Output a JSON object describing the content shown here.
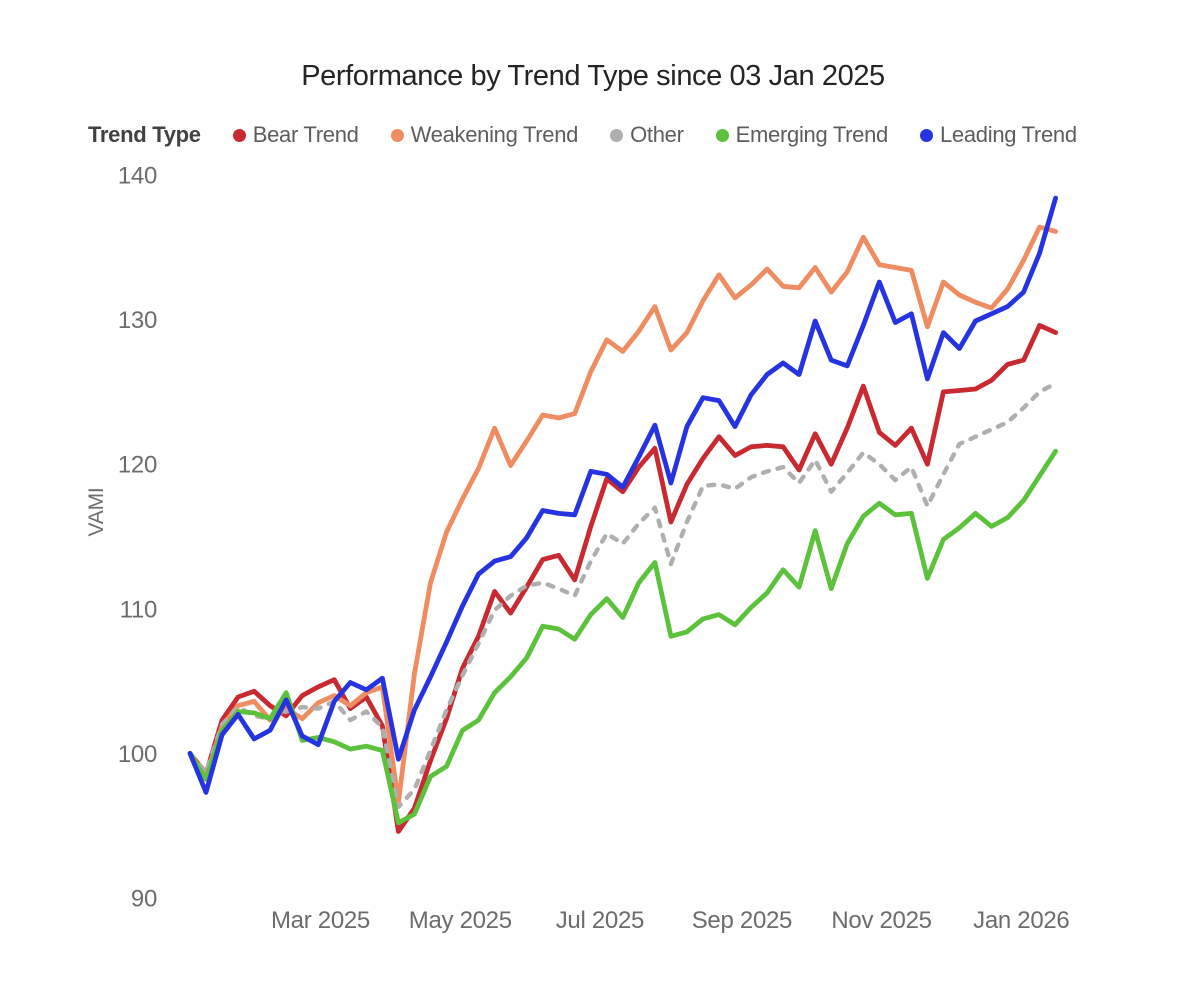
{
  "title": "Performance by Trend Type since 03 Jan 2025",
  "legend": {
    "title": "Trend Type"
  },
  "y_axis": {
    "title": "VAMI",
    "ticks": [
      140,
      130,
      120,
      110,
      100,
      90
    ]
  },
  "x_axis": {
    "ticks": [
      {
        "label": "Mar 2025",
        "week": 8.14
      },
      {
        "label": "May 2025",
        "week": 16.86
      },
      {
        "label": "Jul 2025",
        "week": 25.57
      },
      {
        "label": "Sep 2025",
        "week": 34.43
      },
      {
        "label": "Nov 2025",
        "week": 43.14
      },
      {
        "label": "Jan 2026",
        "week": 51.86
      }
    ]
  },
  "chart_data": {
    "type": "line",
    "title": "Performance by Trend Type since 03 Jan 2025",
    "xlabel": "",
    "ylabel": "VAMI",
    "ylim": [
      90,
      140
    ],
    "x_unit": "weekly",
    "legend_position": "top",
    "grid": false,
    "x": [
      "2025-01-03",
      "2025-01-10",
      "2025-01-17",
      "2025-01-24",
      "2025-01-31",
      "2025-02-07",
      "2025-02-14",
      "2025-02-21",
      "2025-02-28",
      "2025-03-07",
      "2025-03-14",
      "2025-03-21",
      "2025-03-28",
      "2025-04-04",
      "2025-04-11",
      "2025-04-18",
      "2025-04-25",
      "2025-05-02",
      "2025-05-09",
      "2025-05-16",
      "2025-05-23",
      "2025-05-30",
      "2025-06-06",
      "2025-06-13",
      "2025-06-20",
      "2025-06-27",
      "2025-07-04",
      "2025-07-11",
      "2025-07-18",
      "2025-07-25",
      "2025-08-01",
      "2025-08-08",
      "2025-08-15",
      "2025-08-22",
      "2025-08-29",
      "2025-09-05",
      "2025-09-12",
      "2025-09-19",
      "2025-09-26",
      "2025-10-03",
      "2025-10-10",
      "2025-10-17",
      "2025-10-24",
      "2025-10-31",
      "2025-11-07",
      "2025-11-14",
      "2025-11-21",
      "2025-11-28",
      "2025-12-05",
      "2025-12-12",
      "2025-12-19",
      "2025-12-26",
      "2026-01-02",
      "2026-01-09",
      "2026-01-16"
    ],
    "series": [
      {
        "name": "Bear Trend",
        "color": "#C92A32",
        "dash": false,
        "values": [
          100,
          98.6,
          102.3,
          103.9,
          104.3,
          103.3,
          102.6,
          104,
          104.6,
          105.1,
          103.1,
          103.9,
          101.9,
          94.6,
          96.2,
          99.5,
          102.4,
          105.9,
          108.1,
          111.2,
          109.7,
          111.5,
          113.4,
          113.7,
          112,
          115.7,
          119,
          118.1,
          119.8,
          121.1,
          116,
          118.6,
          120.4,
          121.9,
          120.6,
          121.2,
          121.3,
          121.2,
          119.6,
          122.1,
          120,
          122.5,
          125.4,
          122.2,
          121.3,
          122.5,
          120,
          125,
          125.1,
          125.2,
          125.8,
          126.9,
          127.2,
          129.6,
          129.1
        ]
      },
      {
        "name": "Weakening Trend",
        "color": "#EF8C61",
        "dash": false,
        "values": [
          100,
          98.4,
          101.9,
          103.3,
          103.6,
          102.3,
          103.1,
          102.4,
          103.5,
          104,
          103.3,
          104.2,
          104.6,
          96.6,
          105.5,
          111.8,
          115.3,
          117.6,
          119.7,
          122.5,
          119.9,
          121.6,
          123.4,
          123.2,
          123.5,
          126.4,
          128.6,
          127.8,
          129.2,
          130.9,
          127.9,
          129.1,
          131.3,
          133.1,
          131.5,
          132.4,
          133.5,
          132.3,
          132.2,
          133.6,
          131.9,
          133.3,
          135.7,
          133.8,
          133.6,
          133.4,
          129.5,
          132.6,
          131.7,
          131.2,
          130.8,
          132.1,
          134.1,
          136.4,
          136.1
        ]
      },
      {
        "name": "Other",
        "color": "#AFAFAF",
        "dash": true,
        "values": [
          100,
          98.7,
          102,
          103.2,
          102.6,
          102.4,
          102.9,
          103.2,
          103.1,
          103.6,
          102.3,
          102.9,
          101.8,
          96.3,
          97.5,
          100.2,
          103,
          105.4,
          107.6,
          109.9,
          110.9,
          111.6,
          111.8,
          111.4,
          110.9,
          113.3,
          115.2,
          114.5,
          115.9,
          117,
          113.1,
          116,
          118.5,
          118.6,
          118.3,
          119.1,
          119.5,
          119.8,
          118.7,
          120.3,
          118.1,
          119.4,
          120.8,
          120,
          118.9,
          119.8,
          117.1,
          119.3,
          121.4,
          121.9,
          122.4,
          122.9,
          123.9,
          125,
          125.6
        ]
      },
      {
        "name": "Emerging Trend",
        "color": "#5CC13B",
        "dash": false,
        "values": [
          100,
          98.2,
          101.6,
          102.9,
          102.8,
          102.4,
          104.2,
          100.9,
          101.1,
          100.8,
          100.3,
          100.5,
          100.2,
          95.2,
          95.8,
          98.4,
          99.1,
          101.6,
          102.3,
          104.2,
          105.3,
          106.6,
          108.8,
          108.6,
          107.9,
          109.6,
          110.7,
          109.4,
          111.8,
          113.2,
          108.1,
          108.4,
          109.3,
          109.6,
          108.9,
          110.1,
          111.1,
          112.7,
          111.5,
          115.4,
          111.4,
          114.5,
          116.4,
          117.3,
          116.5,
          116.6,
          112.1,
          114.8,
          115.6,
          116.6,
          115.7,
          116.3,
          117.5,
          119.2,
          120.9
        ]
      },
      {
        "name": "Leading Trend",
        "color": "#2633E0",
        "dash": false,
        "values": [
          100,
          97.3,
          101.3,
          102.7,
          101,
          101.6,
          103.7,
          101.2,
          100.6,
          103.6,
          104.9,
          104.4,
          105.2,
          99.6,
          103,
          105.3,
          107.7,
          110.2,
          112.4,
          113.3,
          113.6,
          114.9,
          116.8,
          116.6,
          116.5,
          119.5,
          119.3,
          118.4,
          120.5,
          122.7,
          118.7,
          122.6,
          124.6,
          124.4,
          122.6,
          124.8,
          126.2,
          127,
          126.2,
          129.9,
          127.2,
          126.8,
          129.6,
          132.6,
          129.8,
          130.4,
          125.9,
          129.1,
          128,
          129.9,
          130.4,
          130.9,
          131.9,
          134.6,
          138.4
        ]
      }
    ]
  }
}
